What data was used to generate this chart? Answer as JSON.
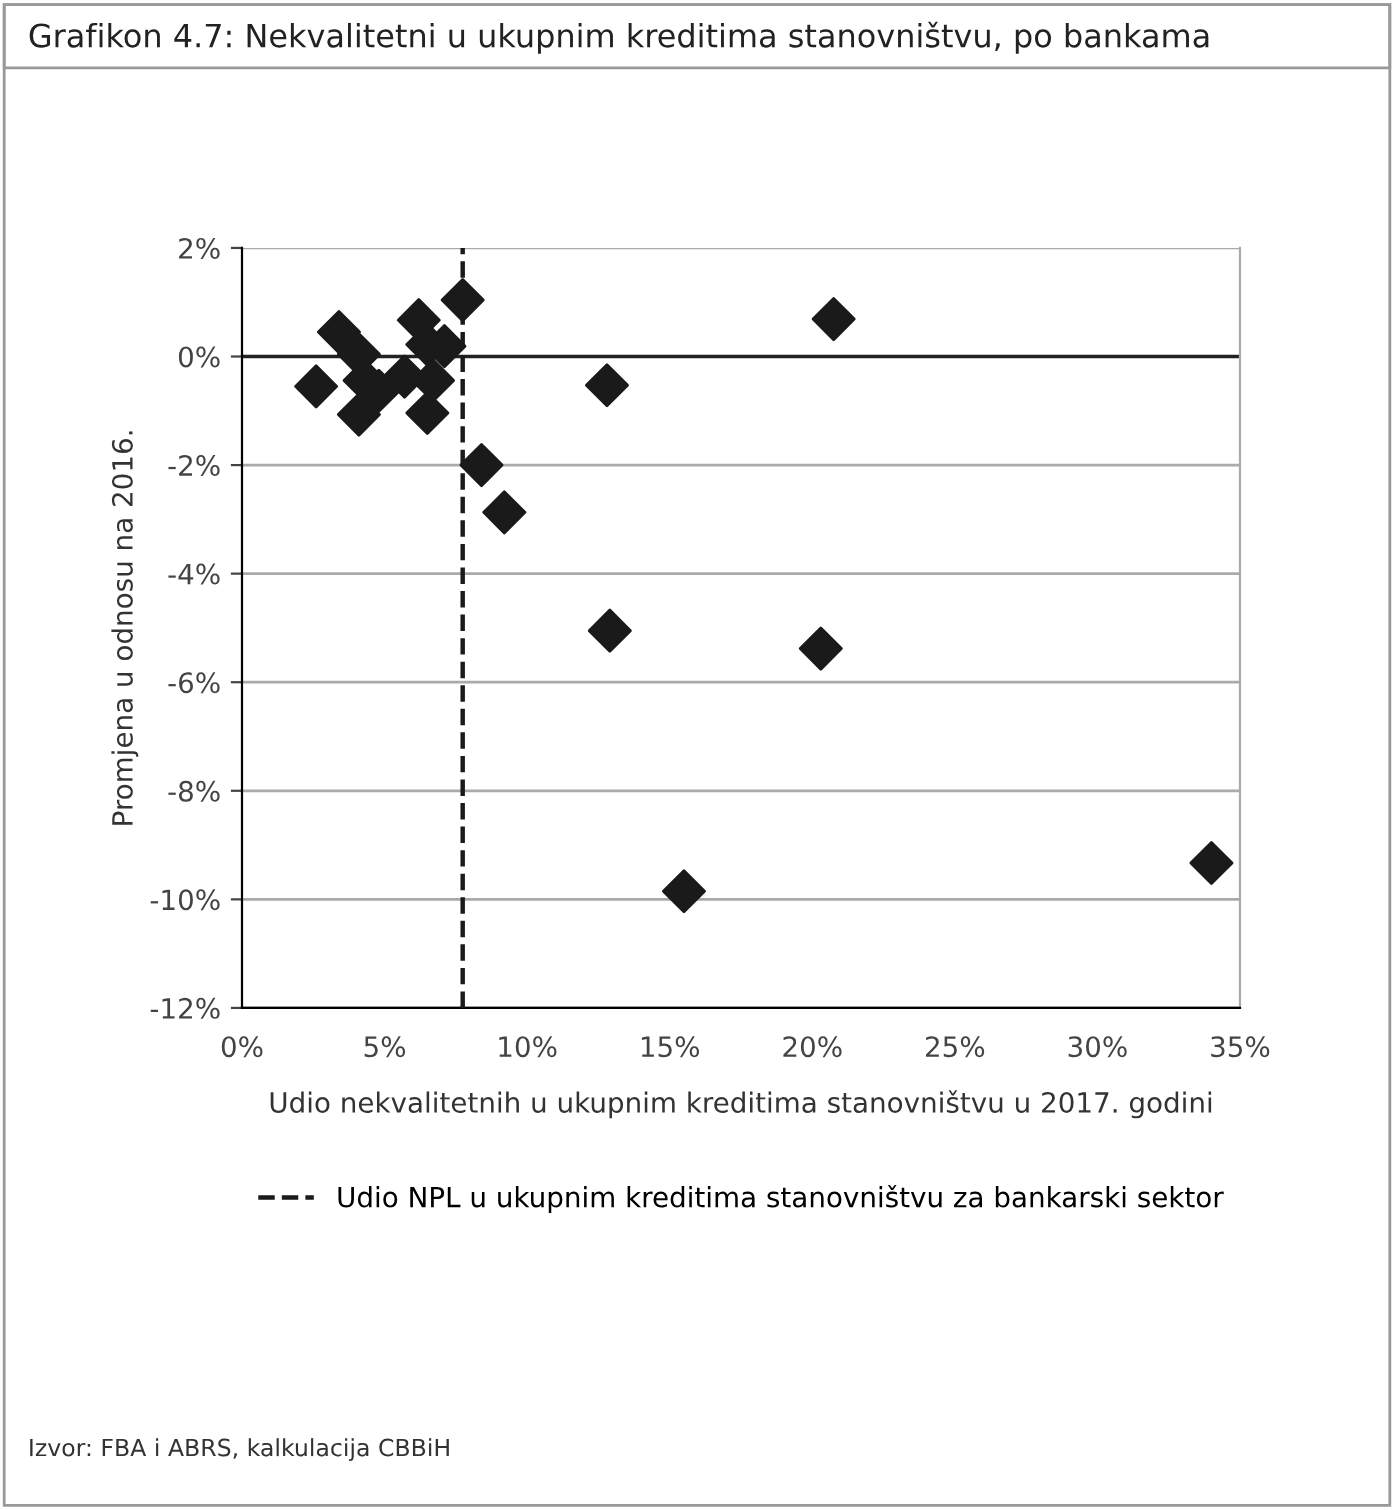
{
  "chart_data": {
    "type": "scatter",
    "title": "Grafikon 4.7: Nekvalitetni u ukupnim kreditima stanovništvu, po bankama",
    "xlabel": "Udio nekvalitetnih u ukupnim kreditima stanovništvu u 2017. godini",
    "ylabel": "Promjena u odnosu na 2016.",
    "x": [
      2.6,
      3.4,
      4.1,
      4.3,
      4.1,
      4.8,
      5.7,
      6.2,
      6.5,
      7.1,
      6.7,
      6.5,
      7.74,
      8.4,
      9.2,
      12.8,
      12.9,
      20.75,
      20.3,
      15.5,
      34.0
    ],
    "series": [
      {
        "color": "#1a1a1a",
        "values": [
          -0.55,
          0.45,
          0.04,
          -0.44,
          -1.07,
          -0.63,
          -0.37,
          0.67,
          0.22,
          0.19,
          -0.44,
          -1.04,
          1.04,
          -2.0,
          -2.87,
          -0.53,
          -5.05,
          0.69,
          -5.38,
          -9.85,
          -9.33
        ]
      }
    ],
    "marker": "diamond",
    "xlim": [
      0,
      35
    ],
    "ylim": [
      -12,
      2
    ],
    "xticks": [
      {
        "value": 0,
        "label": "0%"
      },
      {
        "value": 5,
        "label": "5%"
      },
      {
        "value": 10,
        "label": "10%"
      },
      {
        "value": 15,
        "label": "15%"
      },
      {
        "value": 20,
        "label": "20%"
      },
      {
        "value": 25,
        "label": "25%"
      },
      {
        "value": 30,
        "label": "30%"
      },
      {
        "value": 35,
        "label": "35%"
      }
    ],
    "yticks": [
      {
        "value": -12,
        "label": "-12%"
      },
      {
        "value": -10,
        "label": "-10%"
      },
      {
        "value": -8,
        "label": "-8%"
      },
      {
        "value": -6,
        "label": "-6%"
      },
      {
        "value": -4,
        "label": "-4%"
      },
      {
        "value": -2,
        "label": "-2%"
      },
      {
        "value": 0,
        "label": "0%"
      },
      {
        "value": 2,
        "label": "2%"
      }
    ],
    "grid": "y",
    "ref_lines": [
      {
        "axis": "x",
        "value": 7.74,
        "label": "Udio NPL u ukupnim kreditima stanovništvu za bankarski sektor",
        "color": "#1a1a1a",
        "line_style": "dashed"
      }
    ],
    "legend": "bottom",
    "annotations": [
      "Izvor: FBA i ABRS, kalkulacija CBBiH"
    ]
  }
}
